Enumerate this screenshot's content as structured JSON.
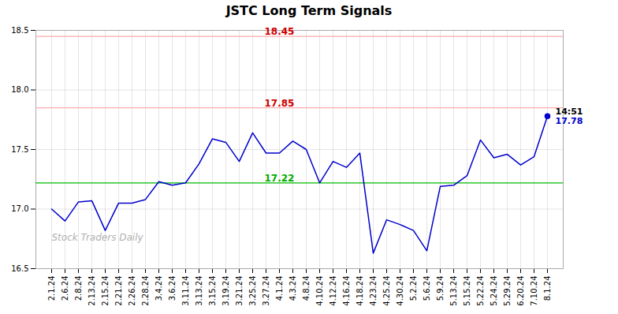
{
  "chart_data": {
    "type": "line",
    "title": "JSTC Long Term Signals",
    "categories": [
      "2.1.24",
      "2.6.24",
      "2.8.24",
      "2.13.24",
      "2.15.24",
      "2.21.24",
      "2.26.24",
      "2.28.24",
      "3.4.24",
      "3.6.24",
      "3.11.24",
      "3.13.24",
      "3.15.24",
      "3.19.24",
      "3.21.24",
      "3.25.24",
      "3.27.24",
      "4.1.24",
      "4.3.24",
      "4.8.24",
      "4.10.24",
      "4.12.24",
      "4.16.24",
      "4.18.24",
      "4.23.24",
      "4.25.24",
      "4.30.24",
      "5.2.24",
      "5.6.24",
      "5.9.24",
      "5.13.24",
      "5.15.24",
      "5.22.24",
      "5.24.24",
      "5.29.24",
      "6.20.24",
      "7.10.24",
      "8.1.24"
    ],
    "values": [
      17.0,
      16.9,
      17.06,
      17.07,
      16.82,
      17.05,
      17.05,
      17.08,
      17.23,
      17.2,
      17.22,
      17.38,
      17.59,
      17.56,
      17.4,
      17.64,
      17.47,
      17.47,
      17.57,
      17.5,
      17.22,
      17.4,
      17.35,
      17.47,
      16.63,
      16.91,
      16.87,
      16.82,
      16.65,
      17.19,
      17.2,
      17.28,
      17.58,
      17.43,
      17.46,
      17.37,
      17.44,
      17.78
    ],
    "color": "#0000cc",
    "ylim": [
      16.5,
      18.5
    ],
    "yticks": [
      16.5,
      {
        "value": 17.0,
        "label": "17.0"
      },
      17.5,
      {
        "value": 18.0,
        "label": "18.0"
      },
      18.5
    ],
    "grid": true,
    "hlines": [
      {
        "value": 18.45,
        "label": "18.45",
        "color": "#ffaaaa",
        "label_color": "#cc0000"
      },
      {
        "value": 17.85,
        "label": "17.85",
        "color": "#ffaaaa",
        "label_color": "#cc0000"
      },
      {
        "value": 17.22,
        "label": "17.22",
        "color": "#00bb00",
        "label_color": "#00aa00"
      }
    ],
    "last_point": {
      "marker": "circle",
      "value": 17.78,
      "label": "17.78",
      "time_label": "14:51"
    },
    "watermark": {
      "text": "Stock Traders Daily",
      "color": "#b0b0b0"
    }
  }
}
